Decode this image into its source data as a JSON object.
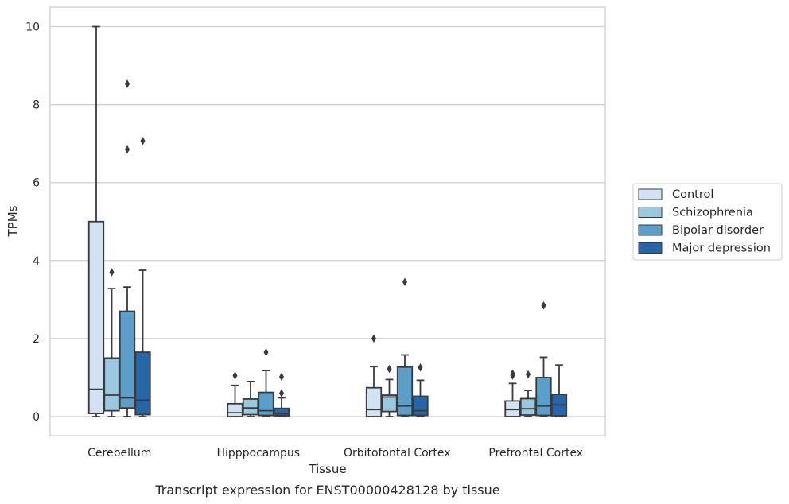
{
  "chart_data": {
    "type": "box",
    "caption": "Transcript expression for ENST00000428128 by tissue",
    "xlabel": "Tissue",
    "ylabel": "TPMs",
    "ylim": [
      -0.45,
      10.5
    ],
    "yticks": [
      0,
      2,
      4,
      6,
      8,
      10
    ],
    "grid": "horizontal",
    "legend_position": "right",
    "categories": [
      "Cerebellum",
      "Hipppocampus",
      "Orbitofontal Cortex",
      "Prefrontal Cortex"
    ],
    "series": [
      {
        "name": "Control",
        "color": "#d1e2f2",
        "boxes": [
          {
            "min": 0.0,
            "q1": 0.08,
            "median": 0.7,
            "q3": 5.0,
            "max": 10.0,
            "outliers": []
          },
          {
            "min": 0.0,
            "q1": 0.0,
            "median": 0.1,
            "q3": 0.33,
            "max": 0.8,
            "outliers": [
              1.05
            ]
          },
          {
            "min": 0.0,
            "q1": 0.0,
            "median": 0.18,
            "q3": 0.74,
            "max": 1.28,
            "outliers": [
              2.0
            ]
          },
          {
            "min": 0.0,
            "q1": 0.0,
            "median": 0.18,
            "q3": 0.4,
            "max": 0.85,
            "outliers": [
              1.05,
              1.1
            ]
          }
        ]
      },
      {
        "name": "Schizophrenia",
        "color": "#9ac8e0",
        "boxes": [
          {
            "min": 0.0,
            "q1": 0.15,
            "median": 0.55,
            "q3": 1.5,
            "max": 3.28,
            "outliers": [
              3.7
            ]
          },
          {
            "min": 0.0,
            "q1": 0.05,
            "median": 0.22,
            "q3": 0.45,
            "max": 0.9,
            "outliers": []
          },
          {
            "min": 0.0,
            "q1": 0.13,
            "median": 0.5,
            "q3": 0.55,
            "max": 0.95,
            "outliers": [
              1.22
            ]
          },
          {
            "min": 0.0,
            "q1": 0.04,
            "median": 0.2,
            "q3": 0.46,
            "max": 0.67,
            "outliers": [
              1.08
            ]
          }
        ]
      },
      {
        "name": "Bipolar disorder",
        "color": "#5a9ec9",
        "boxes": [
          {
            "min": 0.0,
            "q1": 0.22,
            "median": 0.48,
            "q3": 2.7,
            "max": 3.32,
            "outliers": [
              6.85,
              8.53
            ]
          },
          {
            "min": 0.0,
            "q1": 0.03,
            "median": 0.15,
            "q3": 0.62,
            "max": 1.18,
            "outliers": [
              1.65
            ]
          },
          {
            "min": 0.0,
            "q1": 0.03,
            "median": 0.27,
            "q3": 1.27,
            "max": 1.58,
            "outliers": [
              3.45
            ]
          },
          {
            "min": 0.0,
            "q1": 0.03,
            "median": 0.27,
            "q3": 1.0,
            "max": 1.52,
            "outliers": [
              2.85
            ]
          }
        ]
      },
      {
        "name": "Major depression",
        "color": "#2565a8",
        "boxes": [
          {
            "min": 0.0,
            "q1": 0.05,
            "median": 0.42,
            "q3": 1.65,
            "max": 3.75,
            "outliers": [
              7.07
            ]
          },
          {
            "min": 0.0,
            "q1": 0.02,
            "median": 0.07,
            "q3": 0.21,
            "max": 0.48,
            "outliers": [
              0.6,
              1.02
            ]
          },
          {
            "min": 0.0,
            "q1": 0.03,
            "median": 0.15,
            "q3": 0.52,
            "max": 0.93,
            "outliers": [
              1.26
            ]
          },
          {
            "min": 0.0,
            "q1": 0.02,
            "median": 0.3,
            "q3": 0.57,
            "max": 1.32,
            "outliers": []
          }
        ]
      }
    ]
  }
}
